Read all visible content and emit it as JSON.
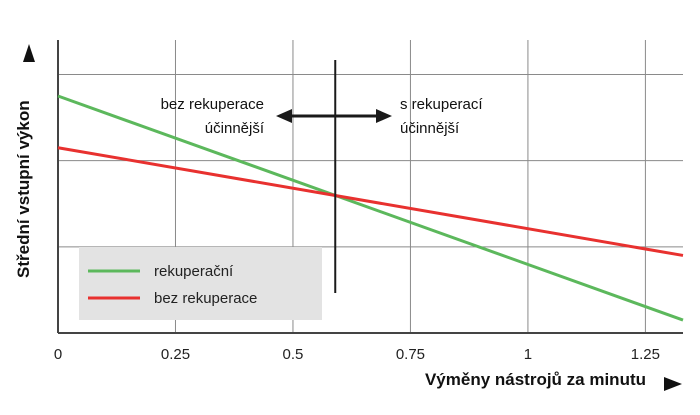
{
  "chart_data": {
    "type": "line",
    "title": "",
    "xlabel": "Výměny nástrojů za minutu",
    "ylabel": "Střední vstupní výkon",
    "x_ticks": [
      0,
      0.25,
      0.5,
      0.75,
      1,
      1.25
    ],
    "x_tick_labels": [
      "0",
      "0.25",
      "0.5",
      "0.75",
      "1",
      "1.25"
    ],
    "xlim": [
      0,
      1.33
    ],
    "y_ticks_unlabeled": [
      1,
      2,
      3
    ],
    "ylim": [
      0,
      3.4
    ],
    "grid": true,
    "legend_position": "bottom-left",
    "series": [
      {
        "name": "rekuperační",
        "color": "#5cb85c",
        "x": [
          0,
          1.33
        ],
        "y": [
          2.75,
          0.15
        ]
      },
      {
        "name": "bez rekuperace",
        "color": "#e8312f",
        "x": [
          0,
          1.33
        ],
        "y": [
          2.15,
          0.9
        ]
      }
    ],
    "threshold": {
      "x": 0.59,
      "left_label": [
        "bez rekuperace",
        "účinnější"
      ],
      "right_label": [
        "s rekuperací",
        "účinnější"
      ]
    }
  }
}
